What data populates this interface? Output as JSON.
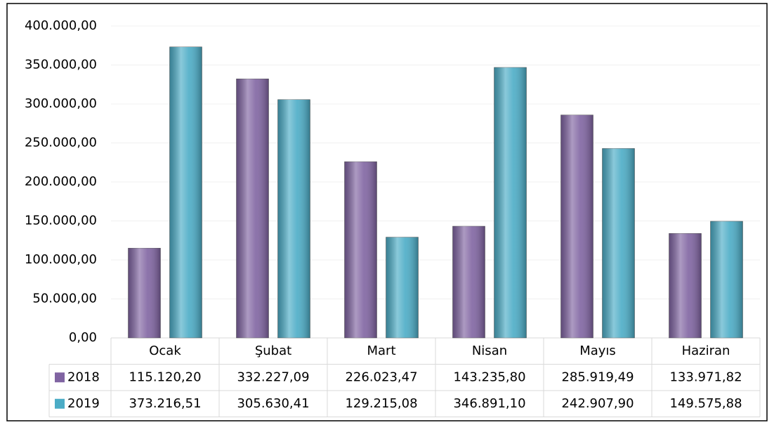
{
  "chart_data": {
    "type": "bar",
    "categories": [
      "Ocak",
      "Şubat",
      "Mart",
      "Nisan",
      "Mayıs",
      "Haziran"
    ],
    "series": [
      {
        "name": "2018",
        "color": "#8064a2",
        "values": [
          115120.2,
          332227.09,
          226023.47,
          143235.8,
          285919.49,
          133971.82
        ],
        "value_labels": [
          "115.120,20",
          "332.227,09",
          "226.023,47",
          "143.235,80",
          "285.919,49",
          "133.971,82"
        ]
      },
      {
        "name": "2019",
        "color": "#4bacc6",
        "values": [
          373216.51,
          305630.41,
          129215.08,
          346891.1,
          242907.9,
          149575.88
        ],
        "value_labels": [
          "373.216,51",
          "305.630,41",
          "129.215,08",
          "346.891,10",
          "242.907,90",
          "149.575,88"
        ]
      }
    ],
    "ylim": [
      0,
      400000
    ],
    "yticks": [
      {
        "value": 0,
        "label": "0,00"
      },
      {
        "value": 50000,
        "label": "50.000,00"
      },
      {
        "value": 100000,
        "label": "100.000,00"
      },
      {
        "value": 150000,
        "label": "150.000,00"
      },
      {
        "value": 200000,
        "label": "200.000,00"
      },
      {
        "value": 250000,
        "label": "250.000,00"
      },
      {
        "value": 300000,
        "label": "300.000,00"
      },
      {
        "value": 350000,
        "label": "350.000,00"
      },
      {
        "value": 400000,
        "label": "400.000,00"
      }
    ],
    "grid": true
  }
}
